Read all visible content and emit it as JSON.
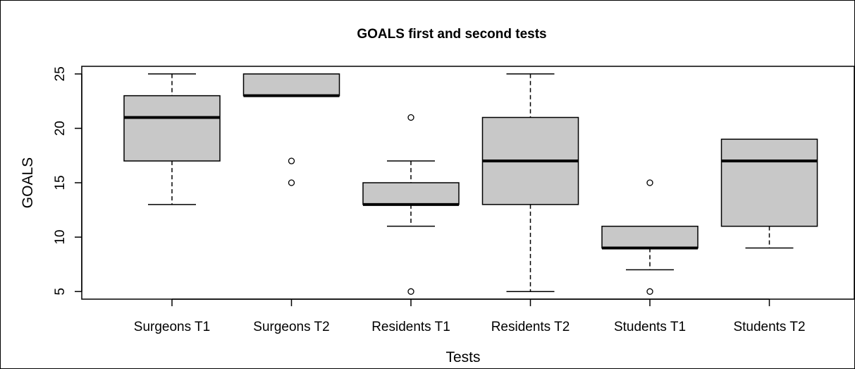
{
  "chart_data": {
    "type": "boxplot",
    "title": "GOALS first and second tests",
    "xlabel": "Tests",
    "ylabel": "GOALS",
    "ylim": [
      4.3,
      25.7
    ],
    "yticks": [
      5,
      10,
      15,
      20,
      25
    ],
    "categories": [
      "Surgeons T1",
      "Surgeons T2",
      "Residents T1",
      "Residents T2",
      "Students T1",
      "Students T2"
    ],
    "boxes": [
      {
        "category": "Surgeons T1",
        "whisker_low": 13,
        "q1": 17,
        "median": 21,
        "q3": 23,
        "whisker_high": 25,
        "outliers": []
      },
      {
        "category": "Surgeons T2",
        "whisker_low": 23,
        "q1": 23,
        "median": 23,
        "q3": 25,
        "whisker_high": 25,
        "outliers": [
          17,
          15
        ]
      },
      {
        "category": "Residents T1",
        "whisker_low": 11,
        "q1": 13,
        "median": 13,
        "q3": 15,
        "whisker_high": 17,
        "outliers": [
          21,
          5
        ]
      },
      {
        "category": "Residents T2",
        "whisker_low": 5,
        "q1": 13,
        "median": 17,
        "q3": 21,
        "whisker_high": 25,
        "outliers": []
      },
      {
        "category": "Students T1",
        "whisker_low": 7,
        "q1": 9,
        "median": 9,
        "q3": 11,
        "whisker_high": 11,
        "outliers": [
          15,
          5
        ]
      },
      {
        "category": "Students T2",
        "whisker_low": 9,
        "q1": 11,
        "median": 17,
        "q3": 19,
        "whisker_high": 19,
        "outliers": []
      }
    ],
    "box_fill": "#c8c8c8",
    "grid": false,
    "legend": "none"
  }
}
